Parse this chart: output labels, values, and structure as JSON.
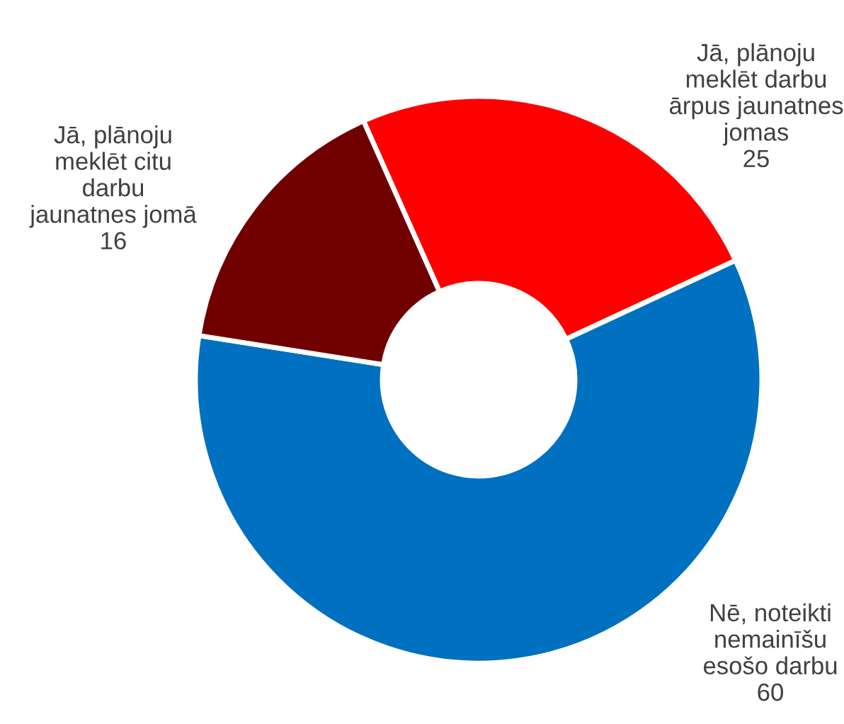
{
  "chart_data": {
    "type": "donut",
    "categories": [
      "Jā, plānoju\nmeklēt darbu\nārpus jaunatnes\njomas",
      "Nē, noteikti\nnemainīšu\nesošo darbu",
      "Jā, plānoju\nmeklēt citu\ndarbu\njaunatnes jomā"
    ],
    "values": [
      25,
      60,
      16
    ],
    "colors": [
      "#ff0000",
      "#0070c0",
      "#700000"
    ],
    "data_labels": true,
    "legend": false
  }
}
